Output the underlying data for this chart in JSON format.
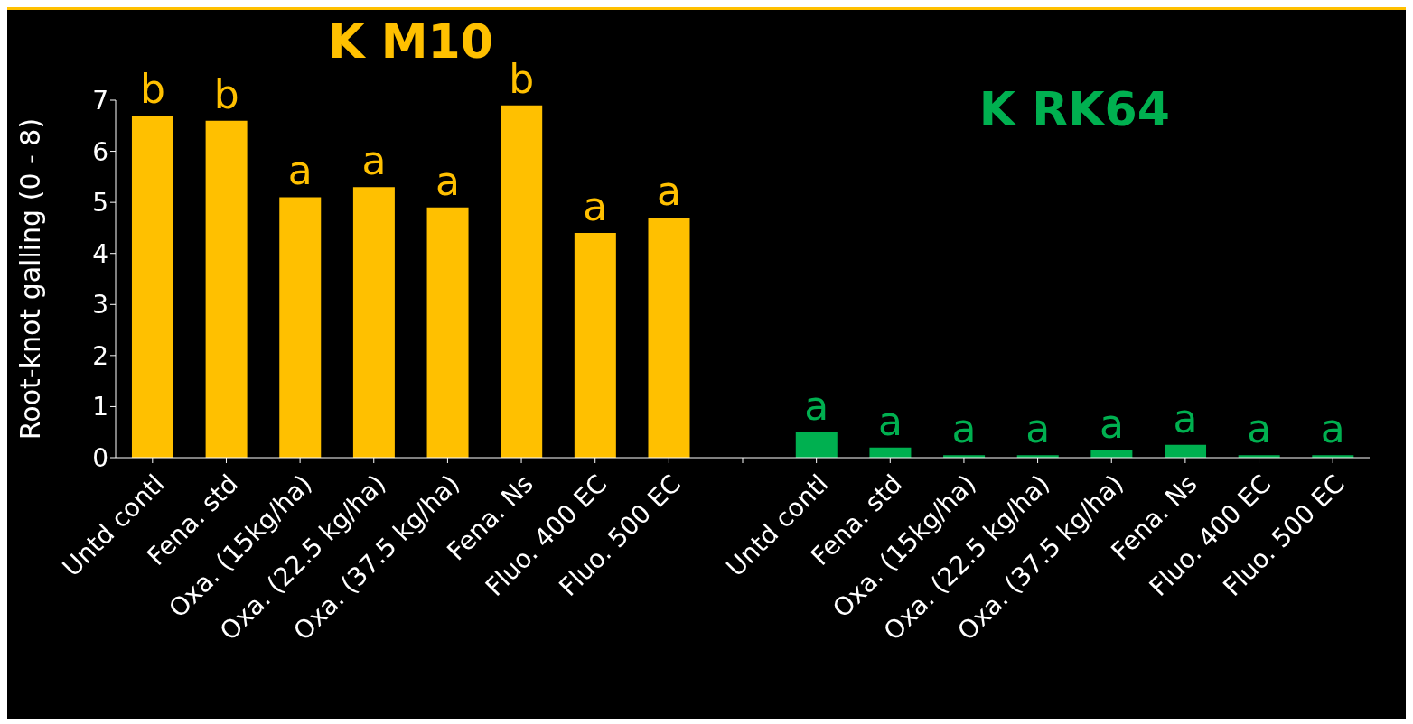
{
  "chart_data": {
    "type": "bar",
    "ylabel": "Root-knot galling (0 - 8)",
    "categories": [
      "Untd contl",
      "Fena. std",
      "Oxa. (15kg/ha)",
      "Oxa. (22.5 kg/ha)",
      "Oxa. (37.5 kg/ha)",
      "Fena. Ns",
      "Fluo. 400 EC",
      "Fluo. 500 EC",
      null,
      "Untd contl",
      "Fena. std",
      "Oxa. (15kg/ha)",
      "Oxa. (22.5 kg/ha)",
      "Oxa. (37.5 kg/ha)",
      "Fena. Ns",
      "Fluo. 400 EC",
      "Fluo. 500 EC"
    ],
    "series": [
      {
        "name": "K M10",
        "color": "#ffc000",
        "values": [
          6.7,
          6.6,
          5.1,
          5.3,
          4.9,
          6.9,
          4.4,
          4.7,
          null,
          null,
          null,
          null,
          null,
          null,
          null,
          null,
          null
        ],
        "value_labels": [
          "b",
          "b",
          "a",
          "a",
          "a",
          "b",
          "a",
          "a",
          null,
          null,
          null,
          null,
          null,
          null,
          null,
          null,
          null
        ]
      },
      {
        "name": "K RK64",
        "color": "#00b050",
        "values": [
          null,
          null,
          null,
          null,
          null,
          null,
          null,
          null,
          null,
          0.5,
          0.2,
          0.05,
          0.05,
          0.15,
          0.25,
          0.05,
          0.05
        ],
        "value_labels": [
          null,
          null,
          null,
          null,
          null,
          null,
          null,
          null,
          null,
          "a",
          "a",
          "a",
          "a",
          "a",
          "a",
          "a",
          "a"
        ]
      }
    ],
    "ylim": [
      0,
      7
    ],
    "yticks": [
      0,
      1,
      2,
      3,
      4,
      5,
      6,
      7
    ],
    "legend": false
  }
}
